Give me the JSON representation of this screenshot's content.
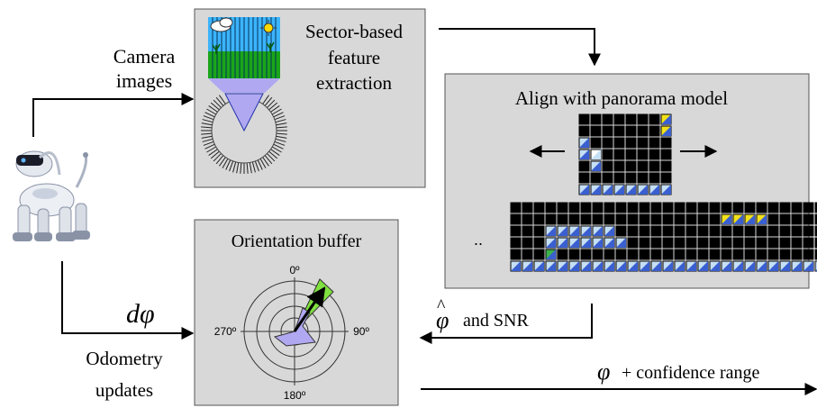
{
  "labels": {
    "camera_line1": "Camera",
    "camera_line2": "images",
    "feature_line1": "Sector-based",
    "feature_line2": "feature",
    "feature_line3": "extraction",
    "align_title": "Align with panorama model",
    "dots_left": "..",
    "dots_right": "..",
    "orientation_title": "Orientation buffer",
    "angle_0": "0º",
    "angle_90": "90º",
    "angle_180": "180º",
    "angle_270": "270º",
    "dphi_d": "d",
    "dphi_phi": "φ",
    "odometry_line1": "Odometry",
    "odometry_line2": "updates",
    "phihat_symbol": "φ",
    "phihat_hat": "^",
    "phihat_text": "and SNR",
    "conf_phi": "φ",
    "conf_text": "+ confidence range"
  },
  "panorama": {
    "small_grid_rows": [
      "KKKKKKKY",
      "KKKKKKKY",
      "BKKKKKKK",
      "BWKKKKKK",
      "KBKKKKKK",
      "KKKKKKKK",
      "BBBBBBBB"
    ],
    "large_grid_rows": [
      "KKKKKKKKKKKKKKKKKKKKKKKKKKKK",
      "KKKKKKKKKKKKKKKKKKYYYYKKKKKK",
      "KKKBBBBBBKKKKKKKKKKKKKKKKKKK",
      "KKKBBBBBBBKKKKKKKKKKKKKKKKKK",
      "KKKGKKKKKKKKKKKKKKKKKKKKKKKK",
      "BBBBBBBBBBBBBBBBBBBBBBBBBBBB"
    ]
  },
  "colors": {
    "box_fill": "#d8d8d8",
    "cell_black": "#000000",
    "cell_blue_light": "#c5dff5",
    "cell_blue_dark": "#3a5fd0",
    "cell_yellow": "#f2e11a",
    "cell_green": "#3db24a",
    "sector_purple": "#b0a8f0",
    "green_sector": "#7fe040"
  }
}
